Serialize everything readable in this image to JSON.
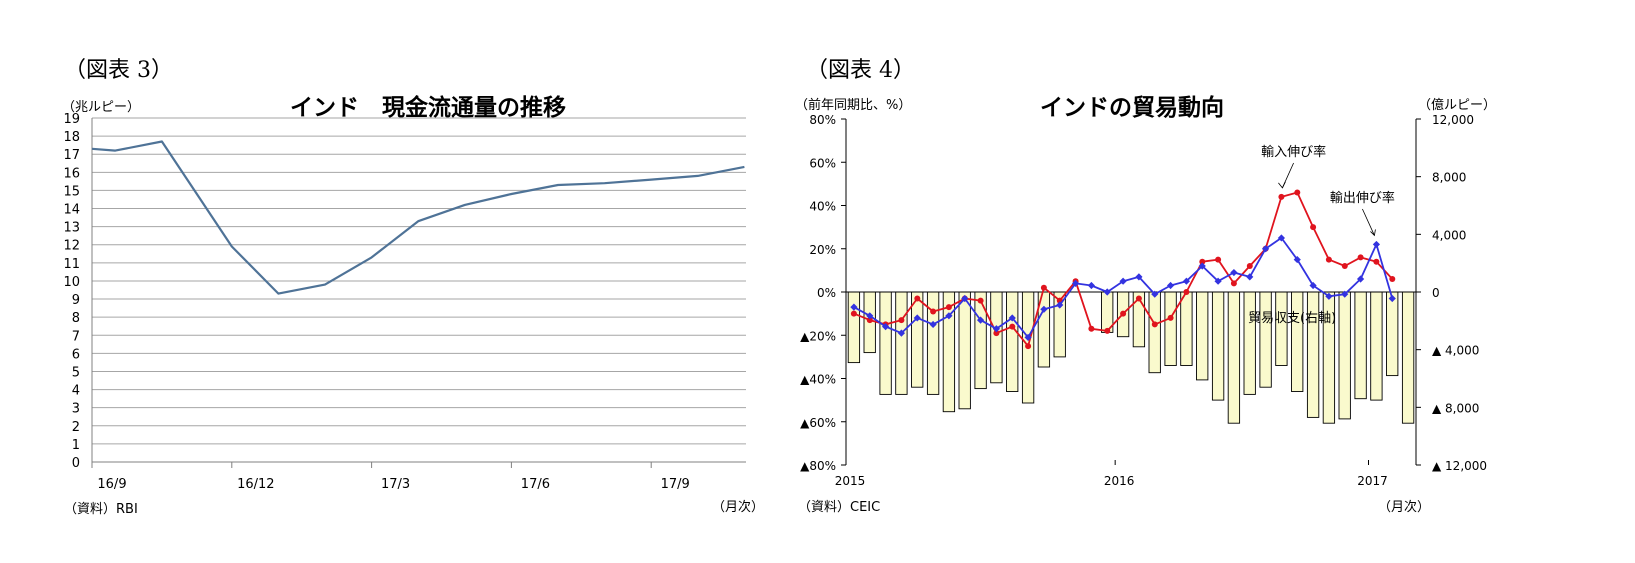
{
  "chart_data": [
    {
      "type": "line",
      "figure_label": "（図表 3）",
      "title": "インド　現金流通量の推移",
      "ylabel": "（兆ルピー）",
      "xlabel": "（月次）",
      "source": "（資料）RBI",
      "ylim": [
        0,
        19
      ],
      "yticks": [
        0,
        1,
        2,
        3,
        4,
        5,
        6,
        7,
        8,
        9,
        10,
        11,
        12,
        13,
        14,
        15,
        16,
        17,
        18,
        19
      ],
      "x_tick_labels": [
        {
          "label": "16/9",
          "index": 0
        },
        {
          "label": "16/12",
          "index": 3
        },
        {
          "label": "17/3",
          "index": 6
        },
        {
          "label": "17/6",
          "index": 9
        },
        {
          "label": "17/9",
          "index": 12
        }
      ],
      "series": [
        {
          "name": "現金流通量",
          "color": "#4f7397",
          "x": [
            0,
            0.5,
            1.5,
            3,
            4,
            5,
            6,
            7,
            8,
            9,
            10,
            11,
            12,
            13,
            14
          ],
          "values": [
            17.3,
            17.2,
            17.7,
            11.9,
            9.3,
            9.8,
            11.3,
            13.3,
            14.2,
            14.8,
            15.3,
            15.4,
            15.6,
            15.8,
            16.3
          ]
        }
      ]
    },
    {
      "type": "bar+line",
      "figure_label": "（図表 4）",
      "title": "インドの貿易動向",
      "left_unit": "（前年同期比、%）",
      "right_unit": "（億ルピー）",
      "xlabel": "（月次）",
      "source": "（資料）CEIC",
      "left_ylim": [
        -80,
        80
      ],
      "right_ylim": [
        -12000,
        12000
      ],
      "left_tick_labels": [
        "80%",
        "60%",
        "40%",
        "20%",
        "0%",
        "▲20%",
        "▲40%",
        "▲60%",
        "▲80%"
      ],
      "right_tick_labels": [
        "12,000",
        "8,000",
        "4,000",
        "0",
        "▲ 4,000",
        "▲ 8,000",
        "▲ 12,000"
      ],
      "year_labels": [
        {
          "label": "2015",
          "month_index": 0
        },
        {
          "label": "2016",
          "month_index": 17
        },
        {
          "label": "2017",
          "month_index": 33
        }
      ],
      "annotations": {
        "import": "輸入伸び率",
        "export": "輸出伸び率",
        "trade_balance": "貿易収支(右軸)"
      },
      "bars": {
        "name": "貿易収支(右軸)",
        "color": "#fafacd",
        "edge": "#000000",
        "values": [
          -4900,
          -4200,
          -7100,
          -7100,
          -6600,
          -7100,
          -8300,
          -8100,
          -6700,
          -6300,
          -6900,
          -7700,
          -5200,
          -4500,
          0,
          0,
          -2800,
          -3100,
          -3800,
          -5600,
          -5100,
          -5100,
          -6100,
          -7500,
          -9100,
          -7100,
          -6600,
          -5100,
          -6900,
          -8700,
          -9100,
          -8800,
          -7400,
          -7500,
          -5800,
          -9100
        ]
      },
      "series": [
        {
          "name": "輸入伸び率",
          "color": "#e0141e",
          "values": [
            -10,
            -13,
            -15,
            -13,
            -3,
            -9,
            -7,
            -3,
            -4,
            -19,
            -16,
            -25,
            2,
            -4,
            5,
            -17,
            -18,
            -10,
            -3,
            -15,
            -12,
            0,
            14,
            15,
            4,
            12,
            20,
            44,
            46,
            30,
            15,
            12,
            16,
            14,
            6
          ]
        },
        {
          "name": "輸出伸び率",
          "color": "#3333e0",
          "values": [
            -7,
            -11,
            -16,
            -19,
            -12,
            -15,
            -11,
            -3,
            -13,
            -17,
            -12,
            -21,
            -8,
            -6,
            4,
            3,
            0,
            5,
            7,
            -1,
            3,
            5,
            12,
            5,
            9,
            7,
            20,
            25,
            15,
            3,
            -2,
            -1,
            6,
            22,
            -3
          ]
        }
      ]
    }
  ]
}
